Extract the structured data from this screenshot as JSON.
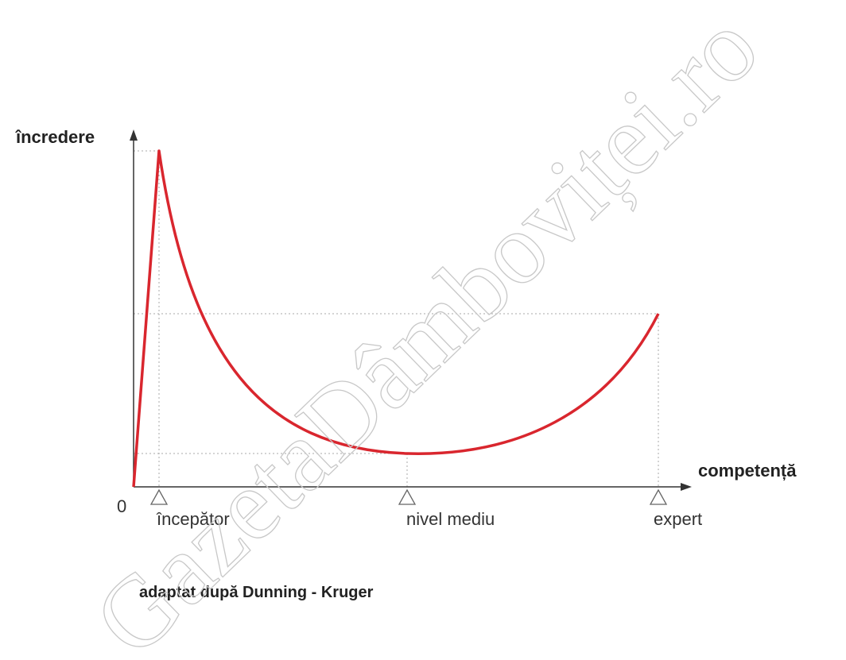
{
  "axes": {
    "y_label": "încredere",
    "x_label": "competență",
    "origin": "0"
  },
  "stages": [
    {
      "label": "începător"
    },
    {
      "label": "nivel mediu"
    },
    {
      "label": "expert"
    }
  ],
  "caption": "adaptat după Dunning - Kruger",
  "watermark": "GazetaDâmboviței.ro"
}
